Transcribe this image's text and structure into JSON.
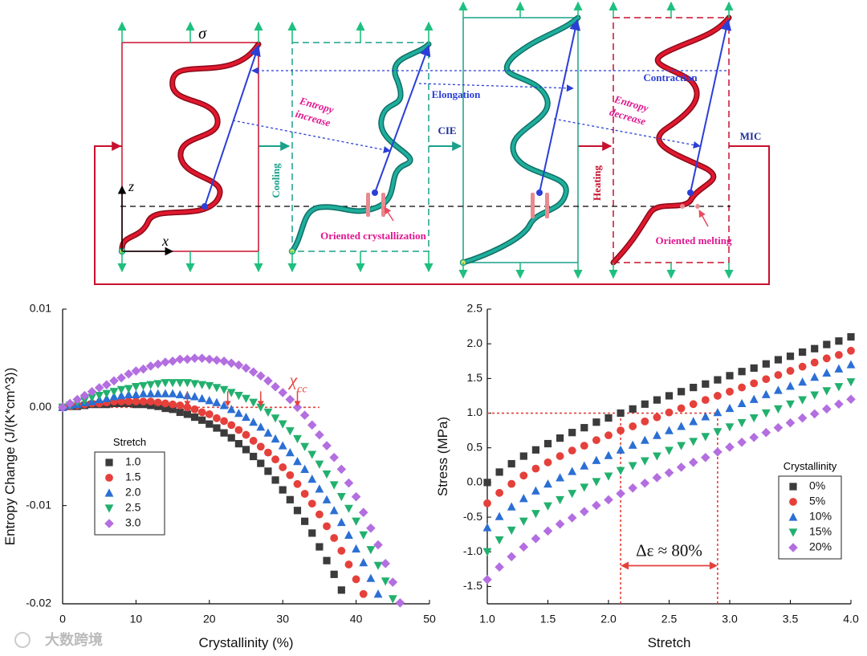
{
  "diagram": {
    "sigma": "σ",
    "axis_z": "z",
    "axis_x": "x",
    "entropy_increase": [
      "Entropy",
      "increase"
    ],
    "elongation": "Elongation",
    "cie": "CIE",
    "contraction": "Contraction",
    "entropy_decrease": [
      "Entropy",
      "decrease"
    ],
    "mic": "MIC",
    "cooling": "Cooling",
    "heating": "Heating",
    "oriented_crystallization": "Oriented crystallization",
    "oriented_melting": "Oriented melting"
  },
  "watermark": "大数跨境",
  "chart_data": [
    {
      "type": "scatter",
      "xlabel": "Crystallinity (%)",
      "ylabel": "Entropy Change (J/(K*cm^3))",
      "xlim": [
        0,
        50
      ],
      "xticks": [
        0,
        10,
        20,
        30,
        40,
        50
      ],
      "ylim": [
        -0.02,
        0.01
      ],
      "yticks": [
        -0.02,
        -0.01,
        {
          "value": 0,
          "label": "0.00"
        },
        0.01
      ],
      "legend_title": "Stretch",
      "legend": "center left",
      "x": [
        0,
        1,
        2,
        3,
        4,
        5,
        6,
        7,
        8,
        9,
        10,
        11,
        12,
        13,
        14,
        15,
        16,
        17,
        18,
        19,
        20,
        21,
        22,
        23,
        24,
        25,
        26,
        27,
        28,
        29,
        30,
        31,
        32,
        33,
        34,
        35,
        36,
        37,
        38,
        39,
        40,
        41,
        42,
        43,
        44,
        45,
        46
      ],
      "series": [
        {
          "name": "1.0",
          "color": "#3b3b3b",
          "marker": "square",
          "values": [
            0,
            0.0001,
            0.0001,
            0.0002,
            0.0003,
            0.0003,
            0.0003,
            0.0004,
            0.0004,
            0.0004,
            0.0003,
            0.0003,
            0.0002,
            0.0001,
            -0.0001,
            -0.0002,
            -0.0005,
            -0.0007,
            -0.001,
            -0.0013,
            -0.0017,
            -0.0021,
            -0.0026,
            -0.0031,
            -0.0037,
            -0.0043,
            -0.005,
            -0.0057,
            -0.0065,
            -0.0074,
            -0.0084,
            -0.0094,
            -0.0105,
            -0.0116,
            -0.0128,
            -0.0142,
            -0.0156,
            -0.017,
            -0.0186,
            null,
            null,
            null,
            null,
            null,
            null,
            null,
            null
          ]
        },
        {
          "name": "1.5",
          "color": "#e5403b",
          "marker": "circle",
          "values": [
            0,
            0.0001,
            0.0002,
            0.0003,
            0.0004,
            0.0004,
            0.0005,
            0.0006,
            0.0006,
            0.0006,
            0.0006,
            0.0006,
            0.0006,
            0.0005,
            0.0004,
            0.0003,
            0.0002,
            0,
            -0.0002,
            -0.0005,
            -0.0007,
            -0.0011,
            -0.0014,
            -0.0018,
            -0.0023,
            -0.0028,
            -0.0034,
            -0.004,
            -0.0046,
            -0.0053,
            -0.0061,
            -0.0069,
            -0.0078,
            -0.0088,
            -0.0098,
            -0.0109,
            -0.0121,
            -0.0133,
            -0.0146,
            -0.016,
            -0.0175,
            -0.019,
            null,
            null,
            null,
            null,
            null
          ]
        },
        {
          "name": "2.0",
          "color": "#2b6fd4",
          "marker": "triangle-up",
          "values": [
            0,
            0.0002,
            0.0003,
            0.0005,
            0.0006,
            0.0008,
            0.0009,
            0.0011,
            0.0012,
            0.0013,
            0.0013,
            0.0014,
            0.0014,
            0.0014,
            0.0014,
            0.0014,
            0.0013,
            0.0012,
            0.0011,
            0.0009,
            0.0007,
            0.0005,
            0.0002,
            -0.0002,
            -0.0006,
            -0.001,
            -0.0015,
            -0.002,
            -0.0026,
            -0.0032,
            -0.0039,
            -0.0046,
            -0.0055,
            -0.0063,
            -0.0073,
            -0.0083,
            -0.0094,
            -0.0105,
            -0.0117,
            -0.013,
            -0.0144,
            -0.0158,
            -0.0174,
            -0.019,
            null,
            null,
            null
          ]
        },
        {
          "name": "2.5",
          "color": "#22b06e",
          "marker": "triangle-down",
          "values": [
            0,
            0.0002,
            0.0005,
            0.0007,
            0.001,
            0.0012,
            0.0014,
            0.0016,
            0.0018,
            0.0019,
            0.0021,
            0.0022,
            0.0023,
            0.0024,
            0.0025,
            0.0025,
            0.0025,
            0.0025,
            0.0024,
            0.0023,
            0.0022,
            0.002,
            0.0018,
            0.0015,
            0.0012,
            0.0009,
            0.0005,
            0,
            -0.0005,
            -0.0011,
            -0.0017,
            -0.0024,
            -0.0032,
            -0.004,
            -0.0048,
            -0.0058,
            -0.0068,
            -0.0079,
            -0.0091,
            -0.0103,
            -0.0116,
            -0.013,
            -0.0145,
            -0.0161,
            -0.0177,
            -0.0195,
            null
          ]
        },
        {
          "name": "3.0",
          "color": "#b36ee0",
          "marker": "diamond",
          "values": [
            0,
            0.0004,
            0.0008,
            0.0012,
            0.0016,
            0.002,
            0.0023,
            0.0027,
            0.003,
            0.0034,
            0.0037,
            0.0039,
            0.0042,
            0.0044,
            0.0046,
            0.0047,
            0.0049,
            0.0049,
            0.005,
            0.005,
            0.0049,
            0.0048,
            0.0047,
            0.0045,
            0.0043,
            0.004,
            0.0036,
            0.0032,
            0.0027,
            0.0021,
            0.0015,
            0.0008,
            0,
            -0.0008,
            -0.0018,
            -0.0028,
            -0.0039,
            -0.0051,
            -0.0063,
            -0.0077,
            -0.0091,
            -0.0107,
            -0.0123,
            -0.014,
            -0.0159,
            -0.0178,
            -0.0199
          ]
        }
      ],
      "annotations": {
        "reference_line": {
          "y": 0,
          "x": [
            0,
            35
          ]
        },
        "arrows_x": [
          17,
          22.5,
          27,
          32
        ],
        "label": {
          "symbol": "χ",
          "subscript": "cc"
        }
      }
    },
    {
      "type": "scatter",
      "xlabel": "Stretch",
      "ylabel": "Stress (MPa)",
      "xlim": [
        1,
        4
      ],
      "xticks": [
        {
          "value": 1,
          "label": "1.0"
        },
        1.5,
        {
          "value": 2,
          "label": "2.0"
        },
        2.5,
        {
          "value": 3,
          "label": "3.0"
        },
        3.5,
        {
          "value": 4,
          "label": "4.0"
        }
      ],
      "ylim": [
        -1.75,
        2.5
      ],
      "yticks": [
        -1.5,
        {
          "value": -1,
          "label": "-1.0"
        },
        -0.5,
        {
          "value": 0,
          "label": "0.0"
        },
        0.5,
        {
          "value": 1,
          "label": "1.0"
        },
        1.5,
        {
          "value": 2,
          "label": "2.0"
        },
        2.5
      ],
      "legend_title": "Crystallinity",
      "legend": "lower right",
      "x": [
        1,
        1.1,
        1.2,
        1.3,
        1.4,
        1.5,
        1.6,
        1.7,
        1.8,
        1.9,
        2,
        2.1,
        2.2,
        2.3,
        2.4,
        2.5,
        2.6,
        2.7,
        2.8,
        2.9,
        3,
        3.1,
        3.2,
        3.3,
        3.4,
        3.5,
        3.6,
        3.7,
        3.8,
        3.9,
        4
      ],
      "series": [
        {
          "name": "0%",
          "color": "#3b3b3b",
          "marker": "square",
          "values": [
            0,
            0.15,
            0.27,
            0.38,
            0.47,
            0.56,
            0.64,
            0.72,
            0.79,
            0.87,
            0.93,
            1,
            1.06,
            1.13,
            1.19,
            1.25,
            1.31,
            1.37,
            1.42,
            1.48,
            1.54,
            1.6,
            1.65,
            1.71,
            1.77,
            1.82,
            1.88,
            1.93,
            1.99,
            2.04,
            2.1
          ]
        },
        {
          "name": "5%",
          "color": "#e5403b",
          "marker": "circle",
          "values": [
            -0.3,
            -0.15,
            -0.02,
            0.1,
            0.2,
            0.29,
            0.38,
            0.46,
            0.53,
            0.61,
            0.68,
            0.75,
            0.81,
            0.88,
            0.94,
            1.01,
            1.07,
            1.13,
            1.19,
            1.25,
            1.31,
            1.37,
            1.43,
            1.49,
            1.55,
            1.61,
            1.67,
            1.73,
            1.79,
            1.84,
            1.9
          ]
        },
        {
          "name": "10%",
          "color": "#2b6fd4",
          "marker": "triangle-up",
          "values": [
            -0.65,
            -0.49,
            -0.35,
            -0.23,
            -0.12,
            -0.02,
            0.07,
            0.16,
            0.24,
            0.32,
            0.39,
            0.47,
            0.54,
            0.61,
            0.68,
            0.75,
            0.81,
            0.88,
            0.95,
            1.01,
            1.07,
            1.14,
            1.2,
            1.27,
            1.33,
            1.39,
            1.45,
            1.52,
            1.58,
            1.64,
            1.7
          ]
        },
        {
          "name": "15%",
          "color": "#22b06e",
          "marker": "triangle-down",
          "values": [
            -1,
            -0.83,
            -0.69,
            -0.56,
            -0.45,
            -0.34,
            -0.25,
            -0.16,
            -0.07,
            0.01,
            0.09,
            0.17,
            0.24,
            0.31,
            0.38,
            0.46,
            0.53,
            0.59,
            0.66,
            0.73,
            0.8,
            0.86,
            0.93,
            1,
            1.06,
            1.13,
            1.19,
            1.26,
            1.32,
            1.38,
            1.45
          ]
        },
        {
          "name": "20%",
          "color": "#b36ee0",
          "marker": "diamond",
          "values": [
            -1.4,
            -1.22,
            -1.07,
            -0.93,
            -0.81,
            -0.7,
            -0.6,
            -0.51,
            -0.42,
            -0.33,
            -0.25,
            -0.16,
            -0.08,
            -0.01,
            0.07,
            0.14,
            0.22,
            0.29,
            0.36,
            0.44,
            0.51,
            0.58,
            0.65,
            0.72,
            0.79,
            0.86,
            0.93,
            0.99,
            1.06,
            1.13,
            1.2
          ]
        }
      ],
      "annotations": {
        "reference_line": {
          "y": 1,
          "x": [
            1,
            2.9
          ]
        },
        "drop_lines_x": [
          2.1,
          2.9
        ],
        "span": {
          "x": [
            2.1,
            2.9
          ],
          "y": -1.2
        },
        "span_label": "Δε ≈ 80%"
      }
    }
  ]
}
